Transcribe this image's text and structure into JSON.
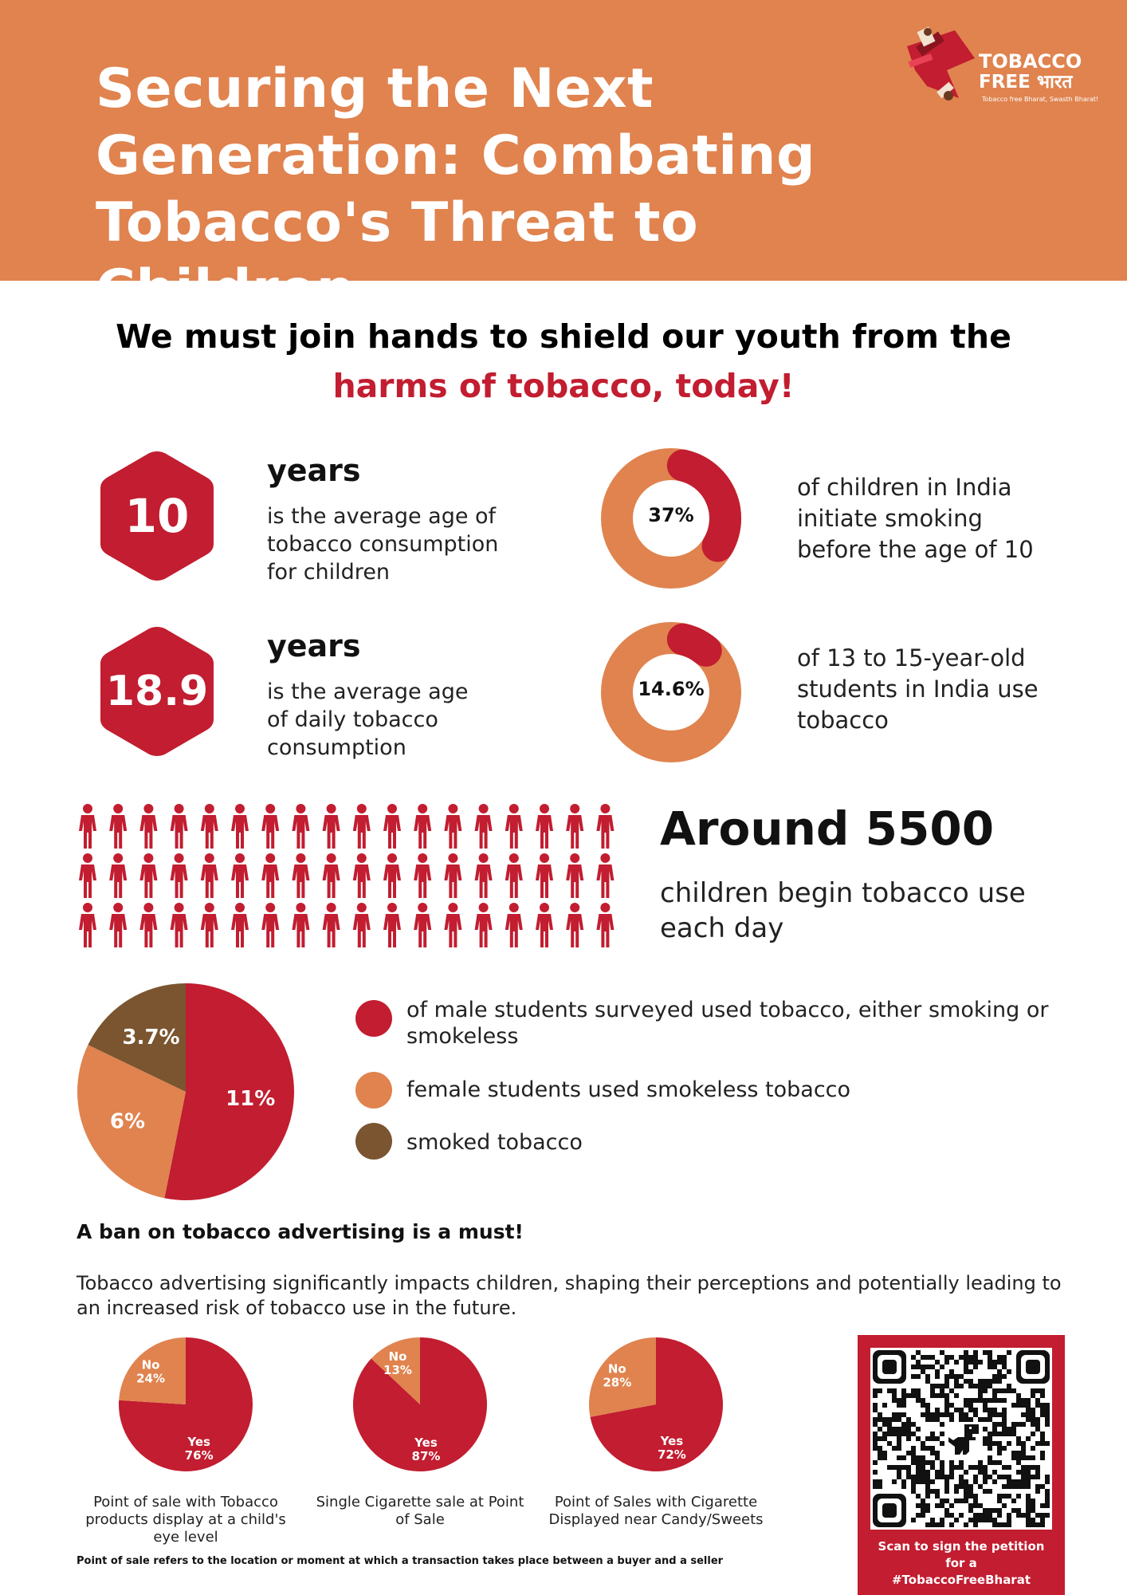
{
  "header": {
    "title_line1": "Securing the Next",
    "title_line2": "Generation: Combating",
    "title_line3": "Tobacco's Threat to Children",
    "logo_word1": "TOBACCO",
    "logo_word2": "FREE भारत",
    "logo_tagline": "Tobacco free Bharat, Swasth Bharat!"
  },
  "headline": {
    "line1": "We must join hands to shield our youth from the",
    "line2": "harms of tobacco, today!"
  },
  "stats": {
    "age_initiation": {
      "value": "10",
      "unit": "years",
      "desc_line1": "is the average age of",
      "desc_line2": "tobacco consumption",
      "desc_line3": "for children"
    },
    "age_daily": {
      "value": "18.9",
      "unit": "years",
      "desc_line1": "is the average age",
      "desc_line2": "of daily tobacco",
      "desc_line3": "consumption"
    },
    "initiate_before_10": {
      "label": "37%",
      "fraction": 0.37,
      "desc_line1": "of children in India",
      "desc_line2": "initiate smoking",
      "desc_line3": "before the age of 10"
    },
    "students_13_15": {
      "label": "14.6%",
      "fraction": 0.146,
      "desc_line1": "of 13 to 15-year-old",
      "desc_line2": "students in India use",
      "desc_line3": "tobacco"
    }
  },
  "daily": {
    "headline": "Around 5500",
    "desc_line1": "children begin tobacco use",
    "desc_line2": "each day",
    "figure_count": 54
  },
  "student_pie": {
    "slices": [
      {
        "label": "11%",
        "value": 11,
        "color": "#c21d30",
        "legend": "of male students surveyed used tobacco, either smoking or",
        "legend2": "smokeless"
      },
      {
        "label": "6%",
        "value": 6,
        "color": "#e0834f",
        "legend": "female students used smokeless tobacco",
        "legend2": ""
      },
      {
        "label": "3.7%",
        "value": 3.7,
        "color": "#7a5530",
        "legend": "smoked tobacco",
        "legend2": ""
      }
    ]
  },
  "ban": {
    "title": "A ban on tobacco advertising is a must!",
    "desc_line1": "Tobacco advertising significantly impacts children, shaping their perceptions and potentially leading to",
    "desc_line2": "an increased risk of tobacco use in the future."
  },
  "chart_data": [
    {
      "type": "pie",
      "caption_line1": "Point of sale with Tobacco",
      "caption_line2": "products display at a child's",
      "caption_line3": "eye level",
      "no_label": "No",
      "no_value": 24,
      "no_text": "24%",
      "yes_label": "Yes",
      "yes_value": 76,
      "yes_text": "76%"
    },
    {
      "type": "pie",
      "caption_line1": "Single Cigarette sale at Point",
      "caption_line2": "of Sale",
      "caption_line3": "",
      "no_label": "No",
      "no_value": 13,
      "no_text": "13%",
      "yes_label": "Yes",
      "yes_value": 87,
      "yes_text": "87%"
    },
    {
      "type": "pie",
      "caption_line1": "Point of Sales with Cigarette",
      "caption_line2": "Displayed near Candy/Sweets",
      "caption_line3": "",
      "no_label": "No",
      "no_value": 28,
      "no_text": "28%",
      "yes_label": "Yes",
      "yes_value": 72,
      "yes_text": "72%"
    }
  ],
  "footnote": "Point of sale refers to the location or moment at which a transaction takes place between a buyer and a seller",
  "qr": {
    "caption_line1": "Scan to sign the petition",
    "caption_line2": "for a",
    "caption_line3": "#TobaccoFreeBharat"
  },
  "colors": {
    "red": "#c21d30",
    "orange": "#e0834f",
    "brown": "#7a5530"
  }
}
